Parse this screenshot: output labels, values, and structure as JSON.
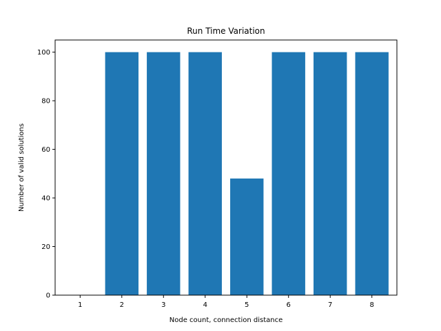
{
  "chart_data": {
    "type": "bar",
    "title": "Run Time Variation",
    "xlabel": "Node count, connection distance",
    "ylabel": "Number of valid solutions",
    "categories": [
      "1",
      "2",
      "3",
      "4",
      "5",
      "6",
      "7",
      "8"
    ],
    "values": [
      0,
      100,
      100,
      100,
      48,
      100,
      100,
      100
    ],
    "ylim": [
      0,
      105
    ],
    "yticks": [
      0,
      20,
      40,
      60,
      80,
      100
    ],
    "grid": false,
    "legend": "none",
    "bar_color": "#1f77b4"
  }
}
